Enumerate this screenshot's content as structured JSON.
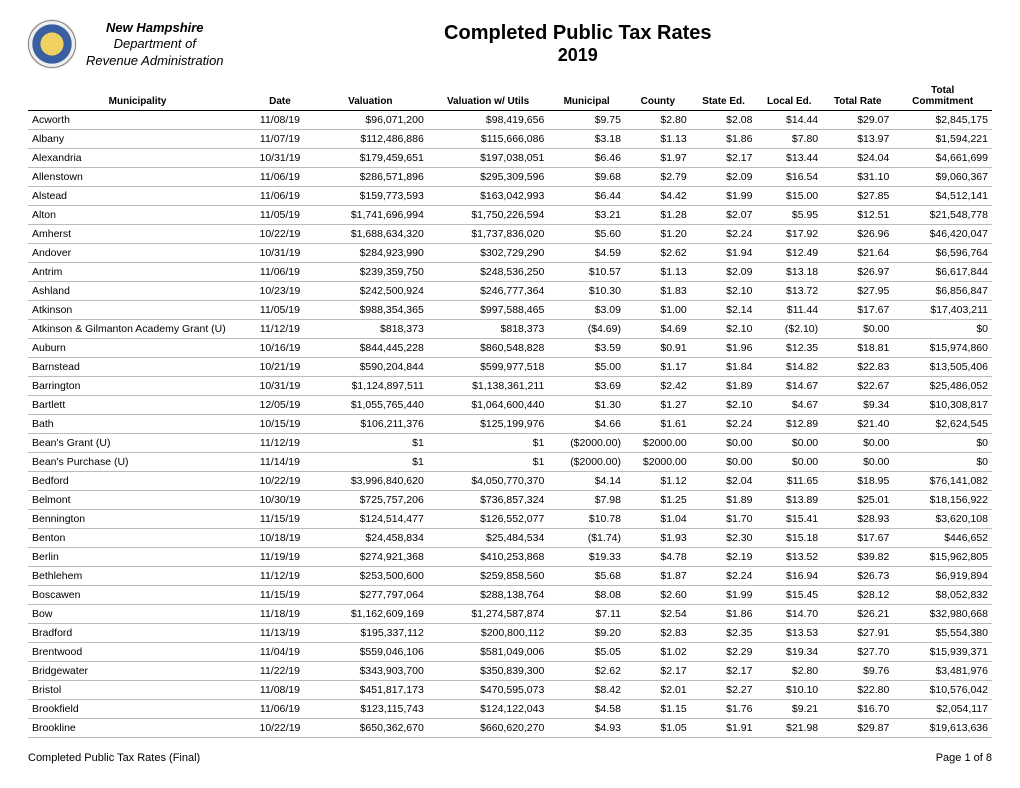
{
  "header": {
    "state": "New Hampshire",
    "dept_line1": "Department of",
    "dept_line2": "Revenue Administration",
    "title_main": "Completed Public Tax Rates",
    "title_year": "2019"
  },
  "columns": [
    "Municipality",
    "Date",
    "Valuation",
    "Valuation w/ Utils",
    "Municipal",
    "County",
    "State Ed.",
    "Local Ed.",
    "Total Rate",
    "Total Commitment"
  ],
  "rows": [
    [
      "Acworth",
      "11/08/19",
      "$96,071,200",
      "$98,419,656",
      "$9.75",
      "$2.80",
      "$2.08",
      "$14.44",
      "$29.07",
      "$2,845,175"
    ],
    [
      "Albany",
      "11/07/19",
      "$112,486,886",
      "$115,666,086",
      "$3.18",
      "$1.13",
      "$1.86",
      "$7.80",
      "$13.97",
      "$1,594,221"
    ],
    [
      "Alexandria",
      "10/31/19",
      "$179,459,651",
      "$197,038,051",
      "$6.46",
      "$1.97",
      "$2.17",
      "$13.44",
      "$24.04",
      "$4,661,699"
    ],
    [
      "Allenstown",
      "11/06/19",
      "$286,571,896",
      "$295,309,596",
      "$9.68",
      "$2.79",
      "$2.09",
      "$16.54",
      "$31.10",
      "$9,060,367"
    ],
    [
      "Alstead",
      "11/06/19",
      "$159,773,593",
      "$163,042,993",
      "$6.44",
      "$4.42",
      "$1.99",
      "$15.00",
      "$27.85",
      "$4,512,141"
    ],
    [
      "Alton",
      "11/05/19",
      "$1,741,696,994",
      "$1,750,226,594",
      "$3.21",
      "$1.28",
      "$2.07",
      "$5.95",
      "$12.51",
      "$21,548,778"
    ],
    [
      "Amherst",
      "10/22/19",
      "$1,688,634,320",
      "$1,737,836,020",
      "$5.60",
      "$1.20",
      "$2.24",
      "$17.92",
      "$26.96",
      "$46,420,047"
    ],
    [
      "Andover",
      "10/31/19",
      "$284,923,990",
      "$302,729,290",
      "$4.59",
      "$2.62",
      "$1.94",
      "$12.49",
      "$21.64",
      "$6,596,764"
    ],
    [
      "Antrim",
      "11/06/19",
      "$239,359,750",
      "$248,536,250",
      "$10.57",
      "$1.13",
      "$2.09",
      "$13.18",
      "$26.97",
      "$6,617,844"
    ],
    [
      "Ashland",
      "10/23/19",
      "$242,500,924",
      "$246,777,364",
      "$10.30",
      "$1.83",
      "$2.10",
      "$13.72",
      "$27.95",
      "$6,856,847"
    ],
    [
      "Atkinson",
      "11/05/19",
      "$988,354,365",
      "$997,588,465",
      "$3.09",
      "$1.00",
      "$2.14",
      "$11.44",
      "$17.67",
      "$17,403,211"
    ],
    [
      "Atkinson & Gilmanton Academy Grant (U)",
      "11/12/19",
      "$818,373",
      "$818,373",
      "($4.69)",
      "$4.69",
      "$2.10",
      "($2.10)",
      "$0.00",
      "$0"
    ],
    [
      "Auburn",
      "10/16/19",
      "$844,445,228",
      "$860,548,828",
      "$3.59",
      "$0.91",
      "$1.96",
      "$12.35",
      "$18.81",
      "$15,974,860"
    ],
    [
      "Barnstead",
      "10/21/19",
      "$590,204,844",
      "$599,977,518",
      "$5.00",
      "$1.17",
      "$1.84",
      "$14.82",
      "$22.83",
      "$13,505,406"
    ],
    [
      "Barrington",
      "10/31/19",
      "$1,124,897,511",
      "$1,138,361,211",
      "$3.69",
      "$2.42",
      "$1.89",
      "$14.67",
      "$22.67",
      "$25,486,052"
    ],
    [
      "Bartlett",
      "12/05/19",
      "$1,055,765,440",
      "$1,064,600,440",
      "$1.30",
      "$1.27",
      "$2.10",
      "$4.67",
      "$9.34",
      "$10,308,817"
    ],
    [
      "Bath",
      "10/15/19",
      "$106,211,376",
      "$125,199,976",
      "$4.66",
      "$1.61",
      "$2.24",
      "$12.89",
      "$21.40",
      "$2,624,545"
    ],
    [
      "Bean's Grant (U)",
      "11/12/19",
      "$1",
      "$1",
      "($2000.00)",
      "$2000.00",
      "$0.00",
      "$0.00",
      "$0.00",
      "$0"
    ],
    [
      "Bean's Purchase (U)",
      "11/14/19",
      "$1",
      "$1",
      "($2000.00)",
      "$2000.00",
      "$0.00",
      "$0.00",
      "$0.00",
      "$0"
    ],
    [
      "Bedford",
      "10/22/19",
      "$3,996,840,620",
      "$4,050,770,370",
      "$4.14",
      "$1.12",
      "$2.04",
      "$11.65",
      "$18.95",
      "$76,141,082"
    ],
    [
      "Belmont",
      "10/30/19",
      "$725,757,206",
      "$736,857,324",
      "$7.98",
      "$1.25",
      "$1.89",
      "$13.89",
      "$25.01",
      "$18,156,922"
    ],
    [
      "Bennington",
      "11/15/19",
      "$124,514,477",
      "$126,552,077",
      "$10.78",
      "$1.04",
      "$1.70",
      "$15.41",
      "$28.93",
      "$3,620,108"
    ],
    [
      "Benton",
      "10/18/19",
      "$24,458,834",
      "$25,484,534",
      "($1.74)",
      "$1.93",
      "$2.30",
      "$15.18",
      "$17.67",
      "$446,652"
    ],
    [
      "Berlin",
      "11/19/19",
      "$274,921,368",
      "$410,253,868",
      "$19.33",
      "$4.78",
      "$2.19",
      "$13.52",
      "$39.82",
      "$15,962,805"
    ],
    [
      "Bethlehem",
      "11/12/19",
      "$253,500,600",
      "$259,858,560",
      "$5.68",
      "$1.87",
      "$2.24",
      "$16.94",
      "$26.73",
      "$6,919,894"
    ],
    [
      "Boscawen",
      "11/15/19",
      "$277,797,064",
      "$288,138,764",
      "$8.08",
      "$2.60",
      "$1.99",
      "$15.45",
      "$28.12",
      "$8,052,832"
    ],
    [
      "Bow",
      "11/18/19",
      "$1,162,609,169",
      "$1,274,587,874",
      "$7.11",
      "$2.54",
      "$1.86",
      "$14.70",
      "$26.21",
      "$32,980,668"
    ],
    [
      "Bradford",
      "11/13/19",
      "$195,337,112",
      "$200,800,112",
      "$9.20",
      "$2.83",
      "$2.35",
      "$13.53",
      "$27.91",
      "$5,554,380"
    ],
    [
      "Brentwood",
      "11/04/19",
      "$559,046,106",
      "$581,049,006",
      "$5.05",
      "$1.02",
      "$2.29",
      "$19.34",
      "$27.70",
      "$15,939,371"
    ],
    [
      "Bridgewater",
      "11/22/19",
      "$343,903,700",
      "$350,839,300",
      "$2.62",
      "$2.17",
      "$2.17",
      "$2.80",
      "$9.76",
      "$3,481,976"
    ],
    [
      "Bristol",
      "11/08/19",
      "$451,817,173",
      "$470,595,073",
      "$8.42",
      "$2.01",
      "$2.27",
      "$10.10",
      "$22.80",
      "$10,576,042"
    ],
    [
      "Brookfield",
      "11/06/19",
      "$123,115,743",
      "$124,122,043",
      "$4.58",
      "$1.15",
      "$1.76",
      "$9.21",
      "$16.70",
      "$2,054,117"
    ],
    [
      "Brookline",
      "10/22/19",
      "$650,362,670",
      "$660,620,270",
      "$4.93",
      "$1.05",
      "$1.91",
      "$21.98",
      "$29.87",
      "$19,613,636"
    ]
  ],
  "footer": {
    "left": "Completed Public Tax Rates (Final)",
    "right": "Page 1 of 8"
  },
  "styling": {
    "background_color": "#ffffff",
    "grid_color": "#bbbbbb",
    "header_border_color": "#000000",
    "body_font_size_pt": 10.5,
    "header_font_size_pt": 10,
    "title_font_size_pt": 20,
    "column_align": [
      "left",
      "center",
      "right",
      "right",
      "right",
      "right",
      "right",
      "right",
      "right",
      "right"
    ]
  }
}
